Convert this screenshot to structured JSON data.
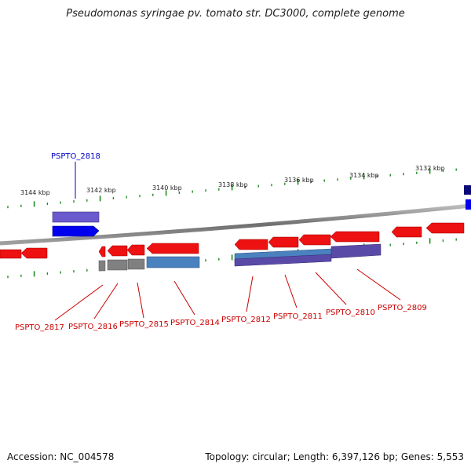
{
  "title": "Pseudomonas syringae pv. tomato str. DC3000, complete genome",
  "footer": {
    "accession": "Accession: NC_004578",
    "summary": "Topology: circular; Length: 6,397,126 bp; Genes: 5,553"
  },
  "kbp_labels": [
    "3144 kbp",
    "3142 kbp",
    "3140 kbp",
    "3138 kbp",
    "3136 kbp",
    "3134 kbp",
    "3132 kbp"
  ],
  "colors": {
    "backbone": "#8a8a8a",
    "tick": "#1e8c1e",
    "gene_forward": "#0000ee",
    "gene_reverse": "#ee0000",
    "label_forward": "#0000cc",
    "label_reverse": "#cc0000",
    "feature_purple": "#5a4aa8",
    "feature_blue": "#4a82bf",
    "feature_gray": "#808080"
  },
  "gene_labels": {
    "top": [
      "PSPTO_2818"
    ],
    "bottom": [
      "PSPTO_2817",
      "PSPTO_2816",
      "PSPTO_2815",
      "PSPTO_2814",
      "PSPTO_2812",
      "PSPTO_2811",
      "PSPTO_2810",
      "PSPTO_2809"
    ]
  }
}
